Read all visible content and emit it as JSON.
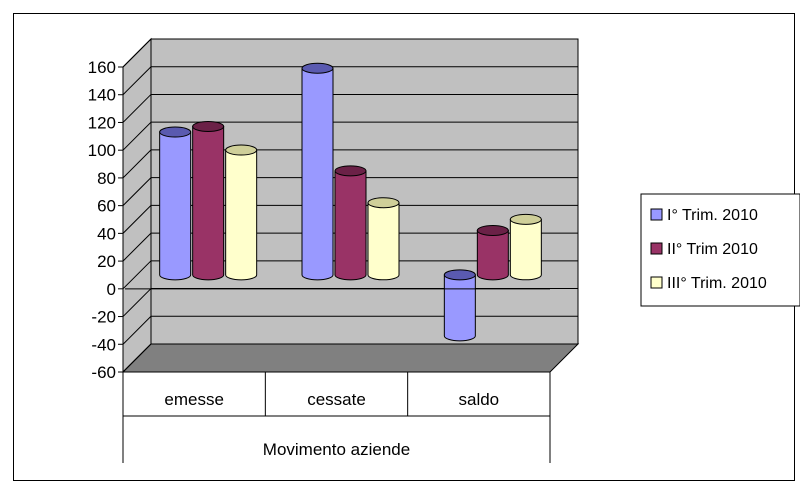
{
  "chart_data": {
    "type": "bar",
    "categories": [
      "emesse",
      "cessate",
      "saldo"
    ],
    "group_label": "Movimento aziende",
    "series": [
      {
        "name": "I° Trim. 2010",
        "values": [
          103,
          149,
          -44
        ],
        "color": "#9999ff",
        "top_color": "#5a5ab0"
      },
      {
        "name": "II° Trim 2010",
        "values": [
          107,
          75,
          32
        ],
        "color": "#993366",
        "top_color": "#6b2147"
      },
      {
        "name": "III° Trim. 2010",
        "values": [
          90,
          52,
          40
        ],
        "color": "#ffffcc",
        "top_color": "#cfcf99"
      }
    ],
    "ylim": [
      -60,
      160
    ],
    "yticks": [
      "160",
      "140",
      "120",
      "100",
      "80",
      "60",
      "40",
      "20",
      "0",
      "-20",
      "-40",
      "-60"
    ],
    "ytick_values": [
      160,
      140,
      120,
      100,
      80,
      60,
      40,
      20,
      0,
      -20,
      -40,
      -60
    ],
    "grid": true,
    "legend_position": "right",
    "wall_color": "#c0c0c0",
    "floor_color": "#808080"
  }
}
